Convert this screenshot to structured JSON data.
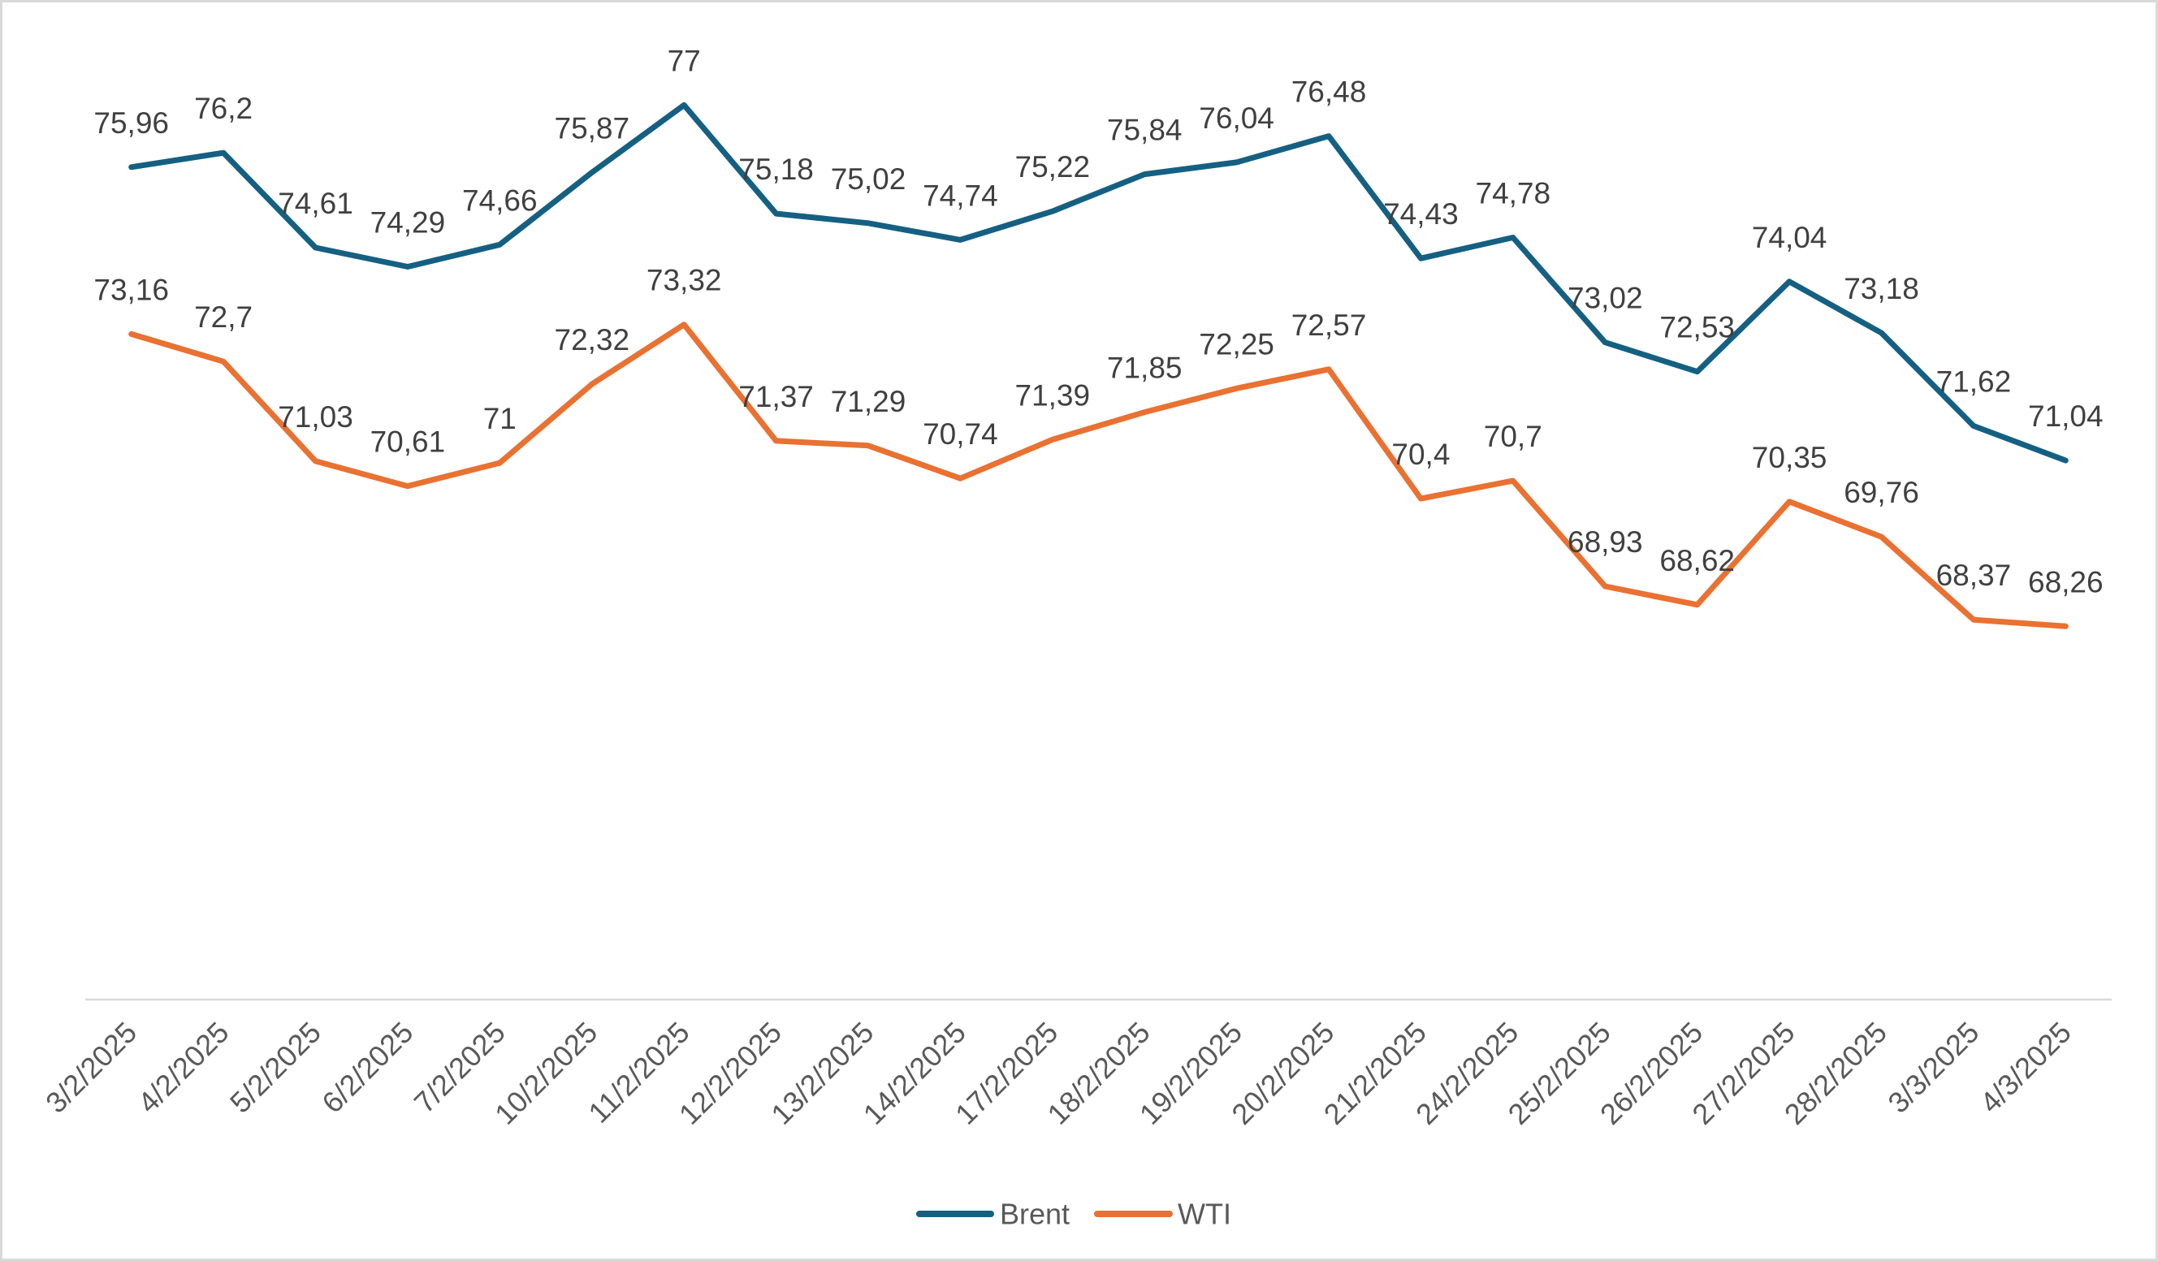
{
  "chart_data": {
    "type": "line",
    "x": [
      "3/2/2025",
      "4/2/2025",
      "5/2/2025",
      "6/2/2025",
      "7/2/2025",
      "10/2/2025",
      "11/2/2025",
      "12/2/2025",
      "13/2/2025",
      "14/2/2025",
      "17/2/2025",
      "18/2/2025",
      "19/2/2025",
      "20/2/2025",
      "21/2/2025",
      "24/2/2025",
      "25/2/2025",
      "26/2/2025",
      "27/2/2025",
      "28/2/2025",
      "3/3/2025",
      "4/3/2025"
    ],
    "series": [
      {
        "name": "Brent",
        "color": "#156082",
        "values": [
          75.96,
          76.2,
          74.61,
          74.29,
          74.66,
          75.87,
          77,
          75.18,
          75.02,
          74.74,
          75.22,
          75.84,
          76.04,
          76.48,
          74.43,
          74.78,
          73.02,
          72.53,
          74.04,
          73.18,
          71.62,
          71.04
        ]
      },
      {
        "name": "WTI",
        "color": "#E97132",
        "values": [
          73.16,
          72.7,
          71.03,
          70.61,
          71,
          72.32,
          73.32,
          71.37,
          71.29,
          70.74,
          71.39,
          71.85,
          72.25,
          72.57,
          70.4,
          70.7,
          68.93,
          68.62,
          70.35,
          69.76,
          68.37,
          68.26
        ]
      }
    ],
    "ylim": [
      62,
      78
    ],
    "grid": false,
    "legend": "bottom",
    "data_labels": "above"
  }
}
